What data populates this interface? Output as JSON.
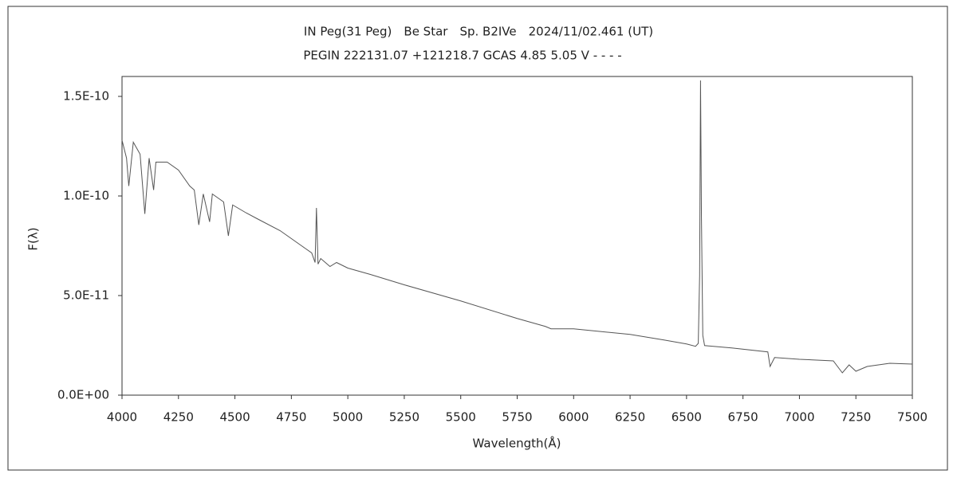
{
  "chart_data": {
    "type": "line",
    "title": "IN Peg(31 Peg)　Be Star　Sp. B2IVe　2024/11/02.461 (UT)",
    "subtitle": "PEGIN 222131.07 +121218.7 GCAS 4.85 5.05 V - - - -",
    "x_label": "Wavelength(Å)",
    "y_label": "F(λ)",
    "xlim": [
      4000,
      7500
    ],
    "ylim": [
      0,
      1.6e-10
    ],
    "xticks": [
      4000,
      4250,
      4500,
      4750,
      5000,
      5250,
      5500,
      5750,
      6000,
      6250,
      6500,
      6750,
      7000,
      7250,
      7500
    ],
    "yticks": [
      {
        "value": 0,
        "label": "0.0E+00"
      },
      {
        "value": 5e-11,
        "label": "5.0E-11"
      },
      {
        "value": 1e-10,
        "label": "1.0E-10"
      },
      {
        "value": 1.5e-10,
        "label": "1.5E-10"
      }
    ],
    "grid": false,
    "series": [
      {
        "color": "#555555",
        "x": [
          4000,
          4020,
          4030,
          4050,
          4080,
          4101,
          4120,
          4140,
          4150,
          4200,
          4250,
          4300,
          4320,
          4340,
          4360,
          4388,
          4400,
          4450,
          4471,
          4490,
          4550,
          4600,
          4700,
          4750,
          4800,
          4840,
          4855,
          4861,
          4868,
          4880,
          4921,
          4950,
          5000,
          5100,
          5250,
          5500,
          5750,
          5875,
          5900,
          6000,
          6250,
          6400,
          6500,
          6540,
          6552,
          6558,
          6562,
          6566,
          6572,
          6580,
          6700,
          6860,
          6870,
          6890,
          7000,
          7150,
          7190,
          7220,
          7250,
          7300,
          7400,
          7500
        ],
        "values": [
          1.28e-10,
          1.19e-10,
          1.05e-10,
          1.27e-10,
          1.21e-10,
          9.1e-11,
          1.19e-10,
          1.03e-10,
          1.17e-10,
          1.17e-10,
          1.13e-10,
          1.05e-10,
          1.03e-10,
          8.55e-11,
          1.01e-10,
          8.7e-11,
          1.01e-10,
          9.7e-11,
          8e-11,
          9.55e-11,
          9.15e-11,
          8.85e-11,
          8.26e-11,
          7.86e-11,
          7.46e-11,
          7.14e-11,
          6.66e-11,
          9.4e-11,
          6.58e-11,
          6.86e-11,
          6.46e-11,
          6.66e-11,
          6.38e-11,
          6.06e-11,
          5.54e-11,
          4.73e-11,
          3.85e-11,
          3.45e-11,
          3.33e-11,
          3.33e-11,
          3.05e-11,
          2.77e-11,
          2.57e-11,
          2.45e-11,
          2.6e-11,
          6e-11,
          1.58e-10,
          9e-11,
          3e-11,
          2.49e-11,
          2.37e-11,
          2.17e-11,
          1.44e-11,
          1.89e-11,
          1.8e-11,
          1.72e-11,
          1.12e-11,
          1.52e-11,
          1.2e-11,
          1.44e-11,
          1.6e-11,
          1.56e-11
        ]
      }
    ]
  }
}
